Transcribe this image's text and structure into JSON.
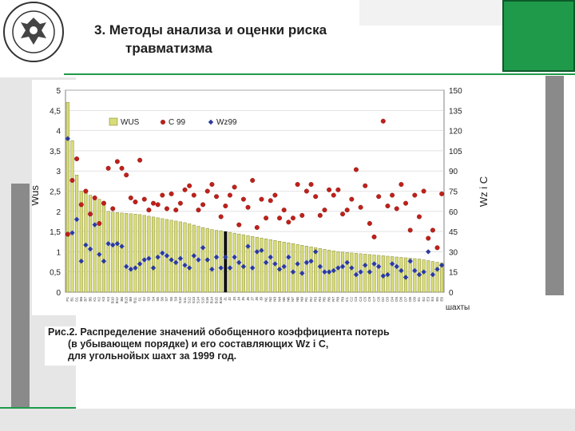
{
  "header": {
    "title_line1": "3.  Методы анализа и оценки риска",
    "title_line2": "травматизма",
    "logo_text": "POLITECHNIKA ŚLĄSKA"
  },
  "caption": {
    "line1": "Рис.2. Распределение значений обобщенного коэффициента потерь",
    "line2": "(в убывающем порядке) и его составляющих Wz i C,",
    "line3": "для угольнойых шахт за 1999 год."
  },
  "colors": {
    "green": "#1e9a4a",
    "bar": "#d8dc78",
    "bar_stroke": "#8a8c3c",
    "c99": "#c0201a",
    "wz99": "#2a3aa0"
  },
  "chart_data": {
    "type": "bar",
    "ylabel": "Wus",
    "ylabel2": "Wz i C",
    "xlabel": "шахты",
    "ylim": [
      0,
      5
    ],
    "ylim2": [
      0,
      150
    ],
    "yticks": [
      "0",
      "0,5",
      "1",
      "1,5",
      "2",
      "2,5",
      "3",
      "3,5",
      "4",
      "4,5",
      "5"
    ],
    "yticks2": [
      "0",
      "15",
      "30",
      "45",
      "60",
      "75",
      "90",
      "105",
      "120",
      "135",
      "150"
    ],
    "legend": "top",
    "highlight_index": 35,
    "categories": [
      "P1",
      "B1",
      "D1",
      "B6",
      "B7",
      "B5",
      "K1",
      "K2",
      "K3",
      "K4",
      "B10",
      "B12",
      "B8",
      "B13",
      "B9",
      "B11",
      "S1",
      "S2",
      "S3",
      "S4",
      "S5",
      "S6",
      "S7",
      "S8",
      "S9",
      "S10",
      "S11",
      "S12",
      "S13",
      "S14",
      "S15",
      "S16",
      "B14",
      "B15",
      "B16",
      "J1",
      "J2",
      "J3",
      "J4",
      "J5",
      "J6",
      "J7",
      "J8",
      "J9",
      "N1",
      "N2",
      "N3",
      "N4",
      "N5",
      "N6",
      "N7",
      "N8",
      "N9",
      "R1",
      "R2",
      "R3",
      "R4",
      "R5",
      "R6",
      "R7",
      "R8",
      "R9",
      "C1",
      "C2",
      "C3",
      "C4",
      "C5",
      "C6",
      "C7",
      "C8",
      "D2",
      "D3",
      "D4",
      "D5",
      "D6",
      "D7",
      "D8",
      "D9",
      "E1",
      "E2",
      "E3",
      "E4",
      "E5",
      "E6"
    ],
    "series": [
      {
        "name": "WUS",
        "type": "bar",
        "axis": "left",
        "values": [
          4.7,
          3.75,
          2.9,
          2.5,
          2.45,
          2.4,
          2.35,
          2.3,
          2.25,
          2.0,
          1.98,
          1.97,
          1.96,
          1.95,
          1.94,
          1.93,
          1.92,
          1.9,
          1.88,
          1.86,
          1.84,
          1.82,
          1.8,
          1.78,
          1.76,
          1.74,
          1.72,
          1.69,
          1.66,
          1.63,
          1.6,
          1.58,
          1.55,
          1.53,
          1.52,
          1.5,
          1.48,
          1.46,
          1.44,
          1.42,
          1.4,
          1.38,
          1.36,
          1.34,
          1.32,
          1.3,
          1.28,
          1.26,
          1.24,
          1.22,
          1.2,
          1.18,
          1.16,
          1.14,
          1.12,
          1.1,
          1.08,
          1.06,
          1.04,
          1.02,
          1.0,
          0.99,
          0.98,
          0.97,
          0.96,
          0.95,
          0.94,
          0.93,
          0.92,
          0.91,
          0.9,
          0.89,
          0.88,
          0.87,
          0.86,
          0.85,
          0.84,
          0.83,
          0.82,
          0.8,
          0.78,
          0.76,
          0.74,
          0.72
        ]
      },
      {
        "name": "C 99",
        "type": "scatter",
        "axis": "right",
        "values": [
          43,
          83,
          99,
          65,
          75,
          58,
          70,
          51,
          66,
          92,
          62,
          97,
          92,
          87,
          70,
          67,
          98,
          69,
          61,
          66,
          65,
          72,
          62,
          73,
          61,
          66,
          76,
          79,
          72,
          61,
          65,
          75,
          80,
          71,
          56,
          64,
          72,
          78,
          50,
          69,
          63,
          83,
          48,
          69,
          55,
          68,
          72,
          55,
          61,
          52,
          55,
          80,
          57,
          75,
          80,
          71,
          57,
          61,
          76,
          72,
          76,
          58,
          61,
          69,
          91,
          63,
          79,
          51,
          41,
          71,
          127,
          64,
          72,
          62,
          80,
          66,
          46,
          72,
          56,
          75,
          40,
          46,
          33,
          73
        ]
      },
      {
        "name": "Wz99",
        "type": "scatter",
        "axis": "right",
        "values": [
          114,
          44,
          54,
          23,
          35,
          32,
          50,
          28,
          23,
          36,
          35,
          36,
          34,
          19,
          17,
          18,
          21,
          24,
          25,
          18,
          26,
          29,
          27,
          24,
          22,
          25,
          20,
          18,
          27,
          24,
          33,
          24,
          17,
          26,
          18,
          26,
          18,
          26,
          22,
          19,
          34,
          18,
          30,
          31,
          22,
          26,
          21,
          17,
          19,
          26,
          15,
          21,
          14,
          22,
          23,
          30,
          19,
          15,
          15,
          16,
          18,
          19,
          22,
          18,
          13,
          15,
          20,
          15,
          21,
          19,
          12,
          13,
          21,
          19,
          16,
          11,
          23,
          16,
          13,
          15,
          30,
          13,
          17,
          20
        ]
      }
    ]
  }
}
